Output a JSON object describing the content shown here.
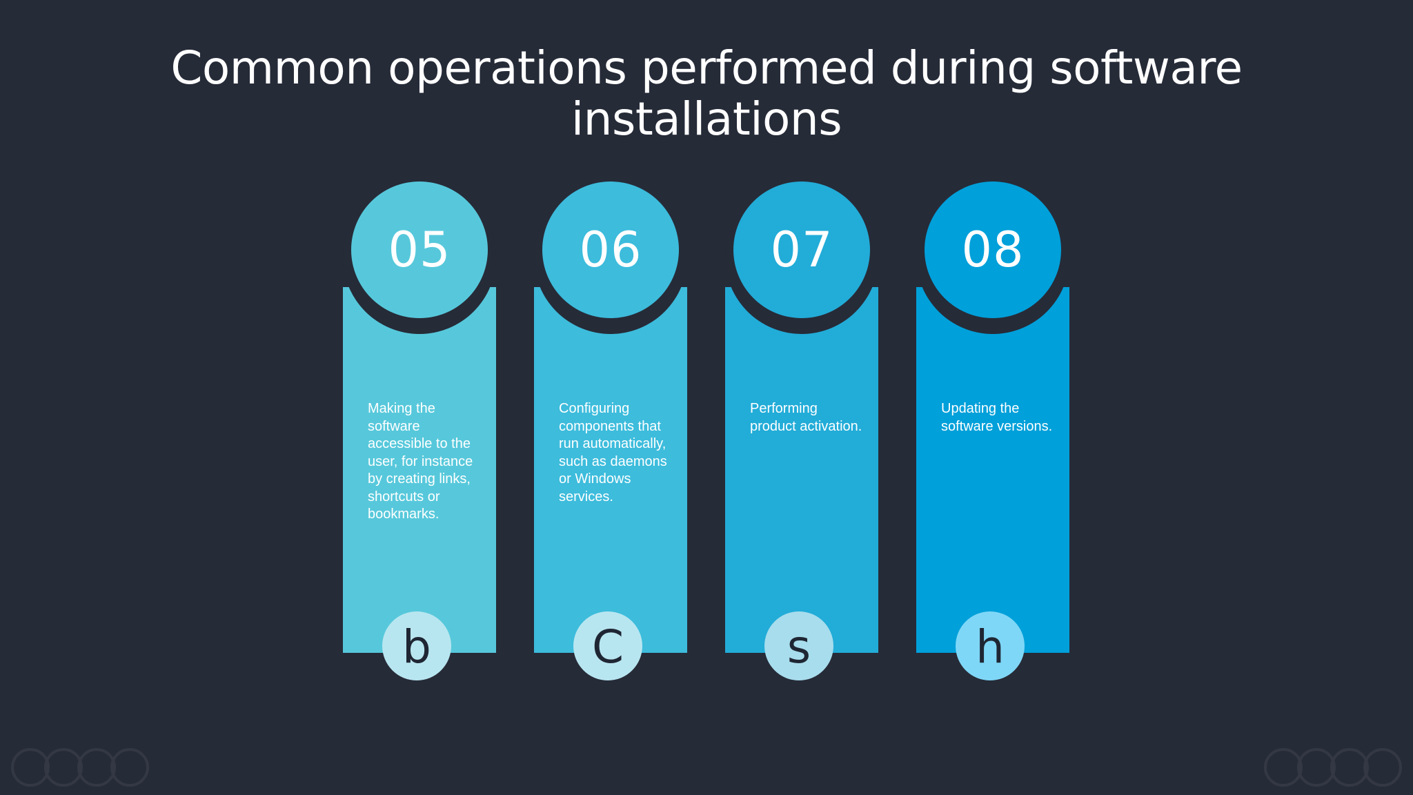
{
  "title": "Common operations performed during software installations",
  "colors": {
    "background": "#262b38",
    "step_colors": [
      "#57c8db",
      "#3dbcdc",
      "#22acd8",
      "#00a0da"
    ],
    "icon_colors": [
      "#b8e6f0",
      "#b8e6f0",
      "#a8dded",
      "#7fd7f7"
    ]
  },
  "steps": [
    {
      "number": "05",
      "description": "Making the software accessible to the user, for instance by creating links, shortcuts or bookmarks.",
      "icon_glyph": "b",
      "icon": "letter-b-icon"
    },
    {
      "number": "06",
      "description": "Configuring components that run automatically, such as daemons or Windows services.",
      "icon_glyph": "C",
      "icon": "letter-c-icon"
    },
    {
      "number": "07",
      "description": "Performing product activation.",
      "icon_glyph": "s",
      "icon": "letter-s-icon"
    },
    {
      "number": "08",
      "description": "Updating the software versions.",
      "icon_glyph": "h",
      "icon": "letter-h-icon"
    }
  ]
}
